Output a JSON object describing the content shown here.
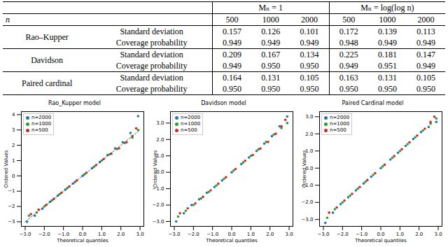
{
  "table": {
    "n_label": "n",
    "group_headers": [
      "Mₙ = 1",
      "Mₙ = log(log n)"
    ],
    "n_values": [
      "500",
      "1000",
      "2000",
      "500",
      "1000",
      "2000"
    ],
    "rows": [
      {
        "model": "Rao–Kupper",
        "stats": [
          {
            "name": "Standard deviation",
            "values": [
              "0.157",
              "0.126",
              "0.101",
              "0.172",
              "0.139",
              "0.113"
            ]
          },
          {
            "name": "Coverage probability",
            "values": [
              "0.949",
              "0.949",
              "0.949",
              "0.948",
              "0.949",
              "0.949"
            ]
          }
        ]
      },
      {
        "model": "Davidson",
        "stats": [
          {
            "name": "Standard deviation",
            "values": [
              "0.209",
              "0.167",
              "0.134",
              "0.225",
              "0.181",
              "0.147"
            ]
          },
          {
            "name": "Coverage probability",
            "values": [
              "0.949",
              "0.950",
              "0.950",
              "0.949",
              "0.951",
              "0.949"
            ]
          }
        ]
      },
      {
        "model": "Paired cardinal",
        "stats": [
          {
            "name": "Standard deviation",
            "values": [
              "0.164",
              "0.131",
              "0.105",
              "0.163",
              "0.131",
              "0.105"
            ]
          },
          {
            "name": "Coverage probability",
            "values": [
              "0.950",
              "0.950",
              "0.950",
              "0.950",
              "0.950",
              "0.950"
            ]
          }
        ]
      }
    ]
  },
  "chart_data": [
    {
      "type": "scatter",
      "title": "Rao_Kupper model",
      "x_label": "Theoretical quantiles",
      "y_label": "Ordered Values",
      "xlim": [
        -3.2,
        3.2
      ],
      "xticks": [
        -3,
        -2,
        -1,
        0,
        1,
        2,
        3
      ],
      "ylim": [
        -3.3,
        4.2
      ],
      "yticks": [
        -3,
        -2,
        -1,
        0,
        1,
        2,
        3,
        4
      ],
      "grid": false,
      "legend": "upper left",
      "series": [
        {
          "name": "n=2000",
          "color": "#1f77b4",
          "marker": "circle",
          "x": [
            -2.9,
            -2.5,
            -2.1,
            -1.7,
            -1.3,
            -0.9,
            -0.5,
            0,
            0.5,
            0.9,
            1.3,
            1.7,
            2.1,
            2.5,
            2.9
          ],
          "values": [
            -3.0,
            -2.6,
            -2.15,
            -1.7,
            -1.3,
            -0.9,
            -0.5,
            0,
            0.5,
            0.9,
            1.35,
            1.8,
            2.2,
            2.8,
            3.9
          ]
        },
        {
          "name": "n=1000",
          "color": "#2ca02c",
          "marker": "circle",
          "x": [
            -2.8,
            -2.4,
            -2.0,
            -1.6,
            -1.2,
            -0.8,
            -0.4,
            0.1,
            0.6,
            1.0,
            1.4,
            1.8,
            2.2,
            2.6,
            2.9
          ],
          "values": [
            -2.6,
            -2.4,
            -2.0,
            -1.6,
            -1.2,
            -0.8,
            -0.4,
            0.1,
            0.6,
            1.0,
            1.4,
            1.75,
            2.15,
            2.5,
            3.0
          ]
        },
        {
          "name": "n=500",
          "color": "#d62728",
          "marker": "circle",
          "x": [
            -2.7,
            -2.3,
            -1.9,
            -1.5,
            -1.1,
            -0.7,
            -0.3,
            0.2,
            0.7,
            1.1,
            1.5,
            1.9,
            2.3,
            2.6,
            2.8
          ],
          "values": [
            -2.5,
            -2.2,
            -1.9,
            -1.5,
            -1.1,
            -0.7,
            -0.3,
            0.2,
            0.7,
            1.1,
            1.45,
            1.8,
            2.2,
            2.6,
            3.1
          ]
        }
      ],
      "reference_line": {
        "x": [
          -3,
          3
        ],
        "values": [
          -3,
          3
        ],
        "color": "#444444",
        "line_style": "dashed"
      }
    },
    {
      "type": "scatter",
      "title": "Davidson model",
      "x_label": "Theoretical quantiles",
      "y_label": "Ordered Values",
      "xlim": [
        -3.2,
        3.2
      ],
      "xticks": [
        -3,
        -2,
        -1,
        0,
        1,
        2,
        3
      ],
      "ylim": [
        -3.3,
        3.7
      ],
      "yticks": [
        -3,
        -2,
        -1,
        0,
        1,
        2,
        3
      ],
      "grid": false,
      "legend": "upper left",
      "series": [
        {
          "name": "n=2000",
          "color": "#1f77b4",
          "marker": "circle",
          "x": [
            -2.9,
            -2.5,
            -2.1,
            -1.7,
            -1.3,
            -0.9,
            -0.5,
            0,
            0.5,
            0.9,
            1.3,
            1.7,
            2.1,
            2.5,
            2.9
          ],
          "values": [
            -3.0,
            -2.5,
            -2.0,
            -1.65,
            -1.25,
            -0.9,
            -0.5,
            0,
            0.5,
            0.9,
            1.3,
            1.75,
            2.2,
            2.8,
            3.4
          ]
        },
        {
          "name": "n=1000",
          "color": "#2ca02c",
          "marker": "circle",
          "x": [
            -2.8,
            -2.4,
            -2.0,
            -1.6,
            -1.2,
            -0.8,
            -0.4,
            0.1,
            0.6,
            1.0,
            1.4,
            1.8,
            2.2,
            2.6,
            2.9
          ],
          "values": [
            -2.7,
            -2.35,
            -2.0,
            -1.6,
            -1.2,
            -0.8,
            -0.4,
            0.1,
            0.6,
            1.0,
            1.4,
            1.85,
            2.3,
            2.7,
            3.0
          ]
        },
        {
          "name": "n=500",
          "color": "#d62728",
          "marker": "circle",
          "x": [
            -2.7,
            -2.3,
            -1.9,
            -1.5,
            -1.1,
            -0.7,
            -0.3,
            0.2,
            0.7,
            1.1,
            1.5,
            1.9,
            2.3,
            2.6,
            2.8
          ],
          "values": [
            -2.5,
            -2.2,
            -1.9,
            -1.5,
            -1.1,
            -0.7,
            -0.3,
            0.2,
            0.7,
            1.05,
            1.45,
            1.85,
            2.35,
            2.8,
            3.2
          ]
        }
      ]
    },
    {
      "type": "scatter",
      "title": "Paired Cardinal model",
      "x_label": "Theoretical quantiles",
      "y_label": "Ordered Values",
      "xlim": [
        -3.2,
        3.2
      ],
      "xticks": [
        -3,
        -2,
        -1,
        0,
        1,
        2,
        3
      ],
      "ylim": [
        -3.4,
        3.3
      ],
      "yticks": [
        -3,
        -2,
        -1,
        0,
        1,
        2,
        3
      ],
      "grid": false,
      "legend": "upper left",
      "series": [
        {
          "name": "n=2000",
          "color": "#1f77b4",
          "marker": "circle",
          "x": [
            -2.9,
            -2.5,
            -2.1,
            -1.7,
            -1.3,
            -0.9,
            -0.5,
            0,
            0.5,
            0.9,
            1.3,
            1.7,
            2.1,
            2.5,
            2.9
          ],
          "values": [
            -3.2,
            -2.6,
            -2.1,
            -1.7,
            -1.3,
            -0.9,
            -0.5,
            0,
            0.5,
            0.9,
            1.3,
            1.7,
            2.1,
            2.4,
            2.7
          ]
        },
        {
          "name": "n=1000",
          "color": "#2ca02c",
          "marker": "circle",
          "x": [
            -2.8,
            -2.4,
            -2.0,
            -1.6,
            -1.2,
            -0.8,
            -0.4,
            0.1,
            0.6,
            1.0,
            1.4,
            1.8,
            2.2,
            2.6,
            2.9
          ],
          "values": [
            -2.9,
            -2.4,
            -2.0,
            -1.6,
            -1.2,
            -0.8,
            -0.4,
            0.1,
            0.6,
            1.0,
            1.4,
            1.8,
            2.2,
            2.6,
            2.9
          ]
        },
        {
          "name": "n=500",
          "color": "#d62728",
          "marker": "circle",
          "x": [
            -2.7,
            -2.3,
            -1.9,
            -1.5,
            -1.1,
            -0.7,
            -0.3,
            0.2,
            0.7,
            1.1,
            1.5,
            1.9,
            2.3,
            2.6,
            2.8
          ],
          "values": [
            -2.6,
            -2.3,
            -1.9,
            -1.5,
            -1.1,
            -0.7,
            -0.3,
            0.2,
            0.7,
            1.1,
            1.5,
            1.9,
            2.3,
            2.7,
            3.0
          ]
        }
      ]
    }
  ]
}
